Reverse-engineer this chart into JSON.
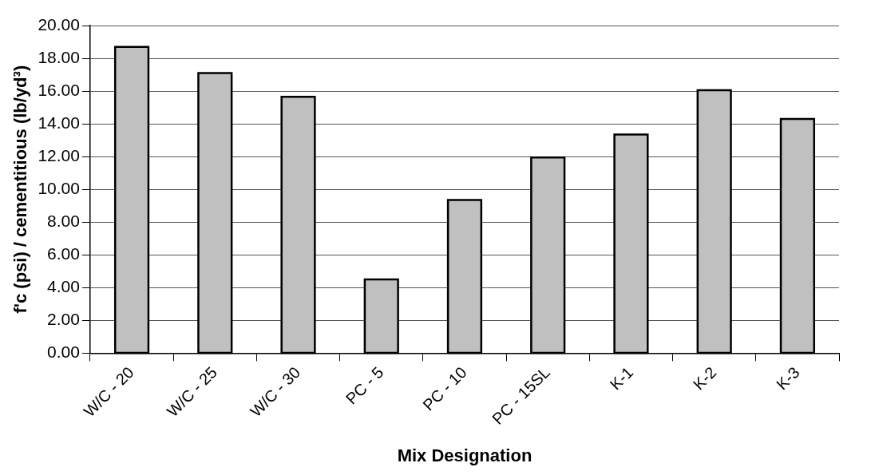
{
  "chart_data": {
    "type": "bar",
    "xlabel": "Mix Designation",
    "ylabel": "f'c (psi) / cementitious (lb/yd³)",
    "categories": [
      "W/C - 20",
      "W/C - 25",
      "W/C - 30",
      "PC - 5",
      "PC - 10",
      "PC - 15SL",
      "K-1",
      "K-2",
      "K-3"
    ],
    "values": [
      18.7,
      17.1,
      15.65,
      4.5,
      9.35,
      11.95,
      13.35,
      16.05,
      14.3
    ],
    "color": "#c0c0c0",
    "ylim": [
      0,
      20
    ],
    "yticks": [
      {
        "value": 0,
        "label": "0.00"
      },
      {
        "value": 2,
        "label": "2.00"
      },
      {
        "value": 4,
        "label": "4.00"
      },
      {
        "value": 6,
        "label": "6.00"
      },
      {
        "value": 8,
        "label": "8.00"
      },
      {
        "value": 10,
        "label": "10.00"
      },
      {
        "value": 12,
        "label": "12.00"
      },
      {
        "value": 14,
        "label": "14.00"
      },
      {
        "value": 16,
        "label": "16.00"
      },
      {
        "value": 18,
        "label": "18.00"
      },
      {
        "value": 20,
        "label": "20.00"
      }
    ],
    "grid": "y",
    "legend": false
  }
}
